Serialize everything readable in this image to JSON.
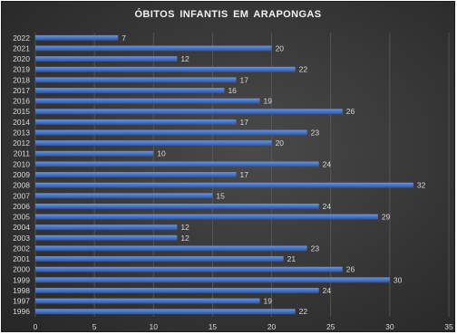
{
  "colors": {
    "bar": "#4472c4",
    "bar_highlight": "#6f93d8",
    "gridline": "#5a5a5a",
    "text": "#d9d9d9"
  },
  "chart_data": {
    "type": "bar",
    "orientation": "horizontal",
    "title": "ÓBITOS INFANTIS EM ARAPONGAS",
    "xlabel": "",
    "ylabel": "",
    "xlim": [
      0,
      35
    ],
    "xticks": [
      "0",
      "5",
      "10",
      "15",
      "20",
      "25",
      "30",
      "35"
    ],
    "grid": "vertical",
    "data_labels": true,
    "categories": [
      "2022",
      "2021",
      "2020",
      "2019",
      "2018",
      "2017",
      "2016",
      "2015",
      "2014",
      "2013",
      "2012",
      "2011",
      "2010",
      "2009",
      "2008",
      "2007",
      "2006",
      "2005",
      "2004",
      "2003",
      "2002",
      "2001",
      "2000",
      "1999",
      "1998",
      "1997",
      "1996"
    ],
    "values": [
      7,
      20,
      12,
      22,
      17,
      16,
      19,
      26,
      17,
      23,
      20,
      10,
      24,
      17,
      32,
      15,
      24,
      29,
      12,
      12,
      23,
      21,
      26,
      30,
      24,
      19,
      22
    ]
  }
}
